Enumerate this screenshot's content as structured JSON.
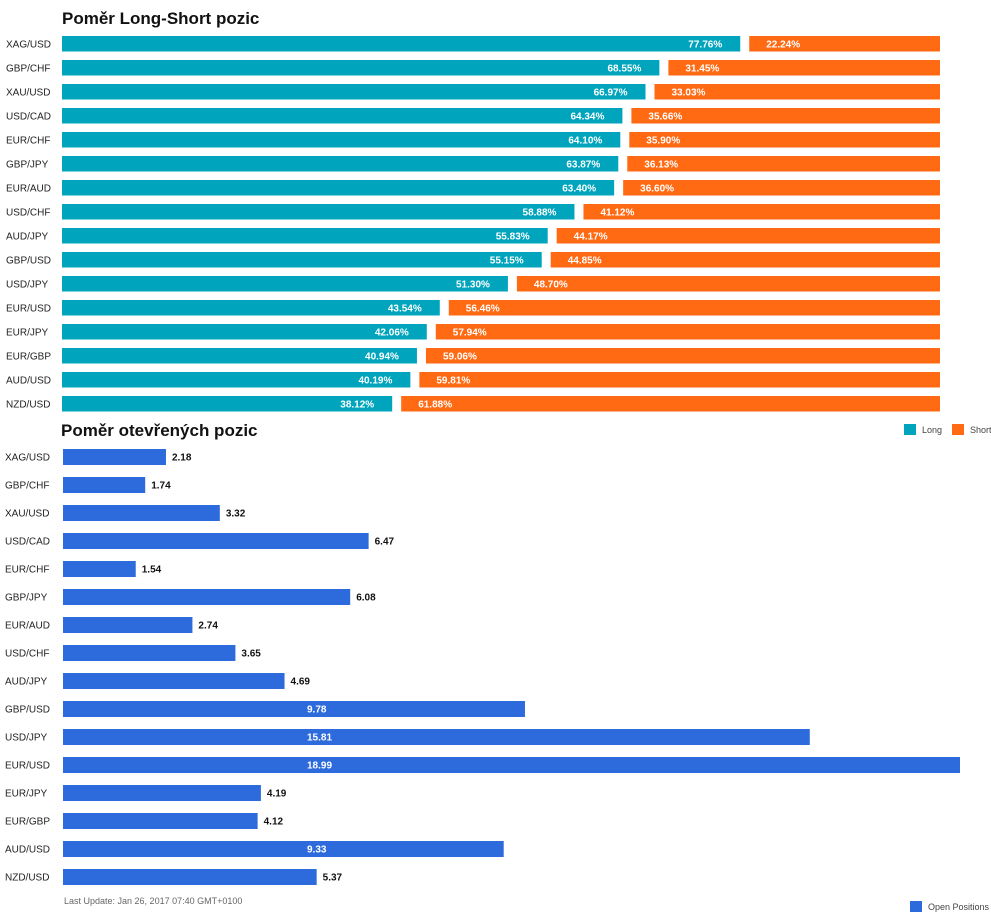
{
  "long_short": {
    "title": "Poměr Long-Short pozic",
    "legend": {
      "long": "Long",
      "short": "Short"
    },
    "colors": {
      "long": "#00a5bd",
      "short": "#ff6a13"
    }
  },
  "open_positions": {
    "title": "Poměr otevřených pozic",
    "legend": "Open Positions",
    "color": "#2d6bdc"
  },
  "footer": "Last Update: Jan 26, 2017 07:40 GMT+0100",
  "chart_data": [
    {
      "type": "bar",
      "orientation": "horizontal",
      "stacked": true,
      "title": "Poměr Long-Short pozic",
      "categories": [
        "XAG/USD",
        "GBP/CHF",
        "XAU/USD",
        "USD/CAD",
        "EUR/CHF",
        "GBP/JPY",
        "EUR/AUD",
        "USD/CHF",
        "AUD/JPY",
        "GBP/USD",
        "USD/JPY",
        "EUR/USD",
        "EUR/JPY",
        "EUR/GBP",
        "AUD/USD",
        "NZD/USD"
      ],
      "series": [
        {
          "name": "Long",
          "values": [
            77.76,
            68.55,
            66.97,
            64.34,
            64.1,
            63.87,
            63.4,
            58.88,
            55.83,
            55.15,
            51.3,
            43.54,
            42.06,
            40.94,
            40.19,
            38.12
          ]
        },
        {
          "name": "Short",
          "values": [
            22.24,
            31.45,
            33.03,
            35.66,
            35.9,
            36.13,
            36.6,
            41.12,
            44.17,
            44.85,
            48.7,
            56.46,
            57.94,
            59.06,
            59.81,
            61.88
          ]
        }
      ],
      "labels": {
        "long": [
          "77.76%",
          "68.55%",
          "66.97%",
          "64.34%",
          "64.10%",
          "63.87%",
          "63.40%",
          "58.88%",
          "55.83%",
          "55.15%",
          "51.30%",
          "43.54%",
          "42.06%",
          "40.94%",
          "40.19%",
          "38.12%"
        ],
        "short": [
          "22.24%",
          "31.45%",
          "33.03%",
          "35.66%",
          "35.90%",
          "36.13%",
          "36.60%",
          "41.12%",
          "44.17%",
          "44.85%",
          "48.70%",
          "56.46%",
          "57.94%",
          "59.06%",
          "59.81%",
          "61.88%"
        ]
      },
      "xlim": [
        0,
        100
      ],
      "legend_position": "right"
    },
    {
      "type": "bar",
      "orientation": "horizontal",
      "title": "Poměr otevřených pozic",
      "categories": [
        "XAG/USD",
        "GBP/CHF",
        "XAU/USD",
        "USD/CAD",
        "EUR/CHF",
        "GBP/JPY",
        "EUR/AUD",
        "USD/CHF",
        "AUD/JPY",
        "GBP/USD",
        "USD/JPY",
        "EUR/USD",
        "EUR/JPY",
        "EUR/GBP",
        "AUD/USD",
        "NZD/USD"
      ],
      "series": [
        {
          "name": "Open Positions",
          "values": [
            2.18,
            1.74,
            3.32,
            6.47,
            1.54,
            6.08,
            2.74,
            3.65,
            4.69,
            9.78,
            15.81,
            18.99,
            4.19,
            4.12,
            9.33,
            5.37
          ]
        }
      ],
      "labels": [
        "2.18",
        "1.74",
        "3.32",
        "6.47",
        "1.54",
        "6.08",
        "2.74",
        "3.65",
        "4.69",
        "9.78",
        "15.81",
        "18.99",
        "4.19",
        "4.12",
        "9.33",
        "5.37"
      ],
      "xlim": [
        0,
        18.99
      ],
      "legend_position": "bottom-right"
    }
  ]
}
